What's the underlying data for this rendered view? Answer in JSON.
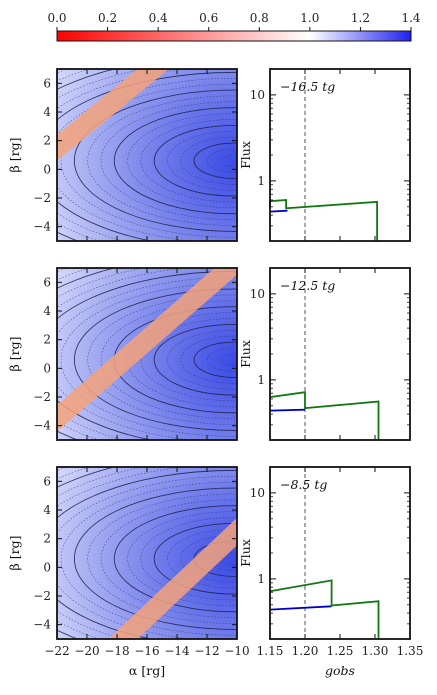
{
  "colorbar": {
    "ticks": [
      "0.0",
      "0.2",
      "0.4",
      "0.6",
      "0.8",
      "1.0",
      "1.2",
      "1.4"
    ],
    "range": [
      0,
      1.4
    ],
    "colors": {
      "low": "#ff0000",
      "mid": "#ffffff",
      "high": "#1f22f0"
    }
  },
  "chart_data": [
    {
      "type": "heatmap",
      "panel": "left",
      "xlabel": "α [rg]",
      "ylabel": "β [rg]",
      "xlim": [
        -22,
        -10
      ],
      "ylim": [
        -5,
        7
      ],
      "xticks": [
        "−22",
        "−20",
        "−18",
        "−16",
        "−14",
        "−12",
        "−10"
      ],
      "yticks": [
        "−4",
        "−2",
        "0",
        "2",
        "4",
        "6"
      ],
      "rows": [
        {
          "time": "−16.5",
          "band": {
            "x0": -22,
            "y0": 1.5,
            "x1": -15.6,
            "y1": 7,
            "color": "#f4a27a"
          },
          "peak": {
            "alpha": -10.2,
            "beta": 0.6
          }
        },
        {
          "time": "−12.5",
          "band": {
            "x0": -22,
            "y0": -3.5,
            "x1": -10.5,
            "y1": 7,
            "color": "#f4a27a"
          },
          "peak": {
            "alpha": -10.2,
            "beta": 0.6
          }
        },
        {
          "time": "−8.5",
          "band": {
            "x0": -17.6,
            "y0": -5,
            "x1": -10,
            "y1": 2.5,
            "color": "#f4a27a"
          },
          "peak": {
            "alpha": -10.2,
            "beta": 0.6
          }
        }
      ]
    },
    {
      "type": "line",
      "panel": "right",
      "xlabel": "gobs",
      "ylabel": "Flux",
      "xlim": [
        1.15,
        1.35
      ],
      "ylim": [
        0.2,
        20
      ],
      "yscale": "log",
      "xticks": [
        "1.15",
        "1.20",
        "1.25",
        "1.30",
        "1.35"
      ],
      "yticks": [
        "1",
        "10"
      ],
      "vline": 1.2,
      "series_colors": {
        "blue": "#0000cc",
        "green": "#117711"
      },
      "rows": [
        {
          "label": "−16.5 tg",
          "blue": [
            [
              1.15,
              0.44
            ],
            [
              1.175,
              0.45
            ]
          ],
          "green": [
            [
              1.15,
              0.48
            ],
            [
              1.15,
              0.58
            ],
            [
              1.173,
              0.6
            ],
            [
              1.173,
              0.48
            ],
            [
              1.303,
              0.57
            ],
            [
              1.303,
              0.2
            ]
          ]
        },
        {
          "label": "−12.5 tg",
          "blue": [
            [
              1.15,
              0.44
            ],
            [
              1.2,
              0.45
            ]
          ],
          "green": [
            [
              1.15,
              0.63
            ],
            [
              1.2,
              0.72
            ],
            [
              1.2,
              0.47
            ],
            [
              1.305,
              0.56
            ],
            [
              1.305,
              0.2
            ]
          ]
        },
        {
          "label": "−8.5 tg",
          "blue": [
            [
              1.15,
              0.44
            ],
            [
              1.238,
              0.48
            ]
          ],
          "green": [
            [
              1.15,
              0.72
            ],
            [
              1.238,
              0.96
            ],
            [
              1.238,
              0.49
            ],
            [
              1.305,
              0.55
            ],
            [
              1.305,
              0.2
            ]
          ]
        }
      ]
    }
  ]
}
